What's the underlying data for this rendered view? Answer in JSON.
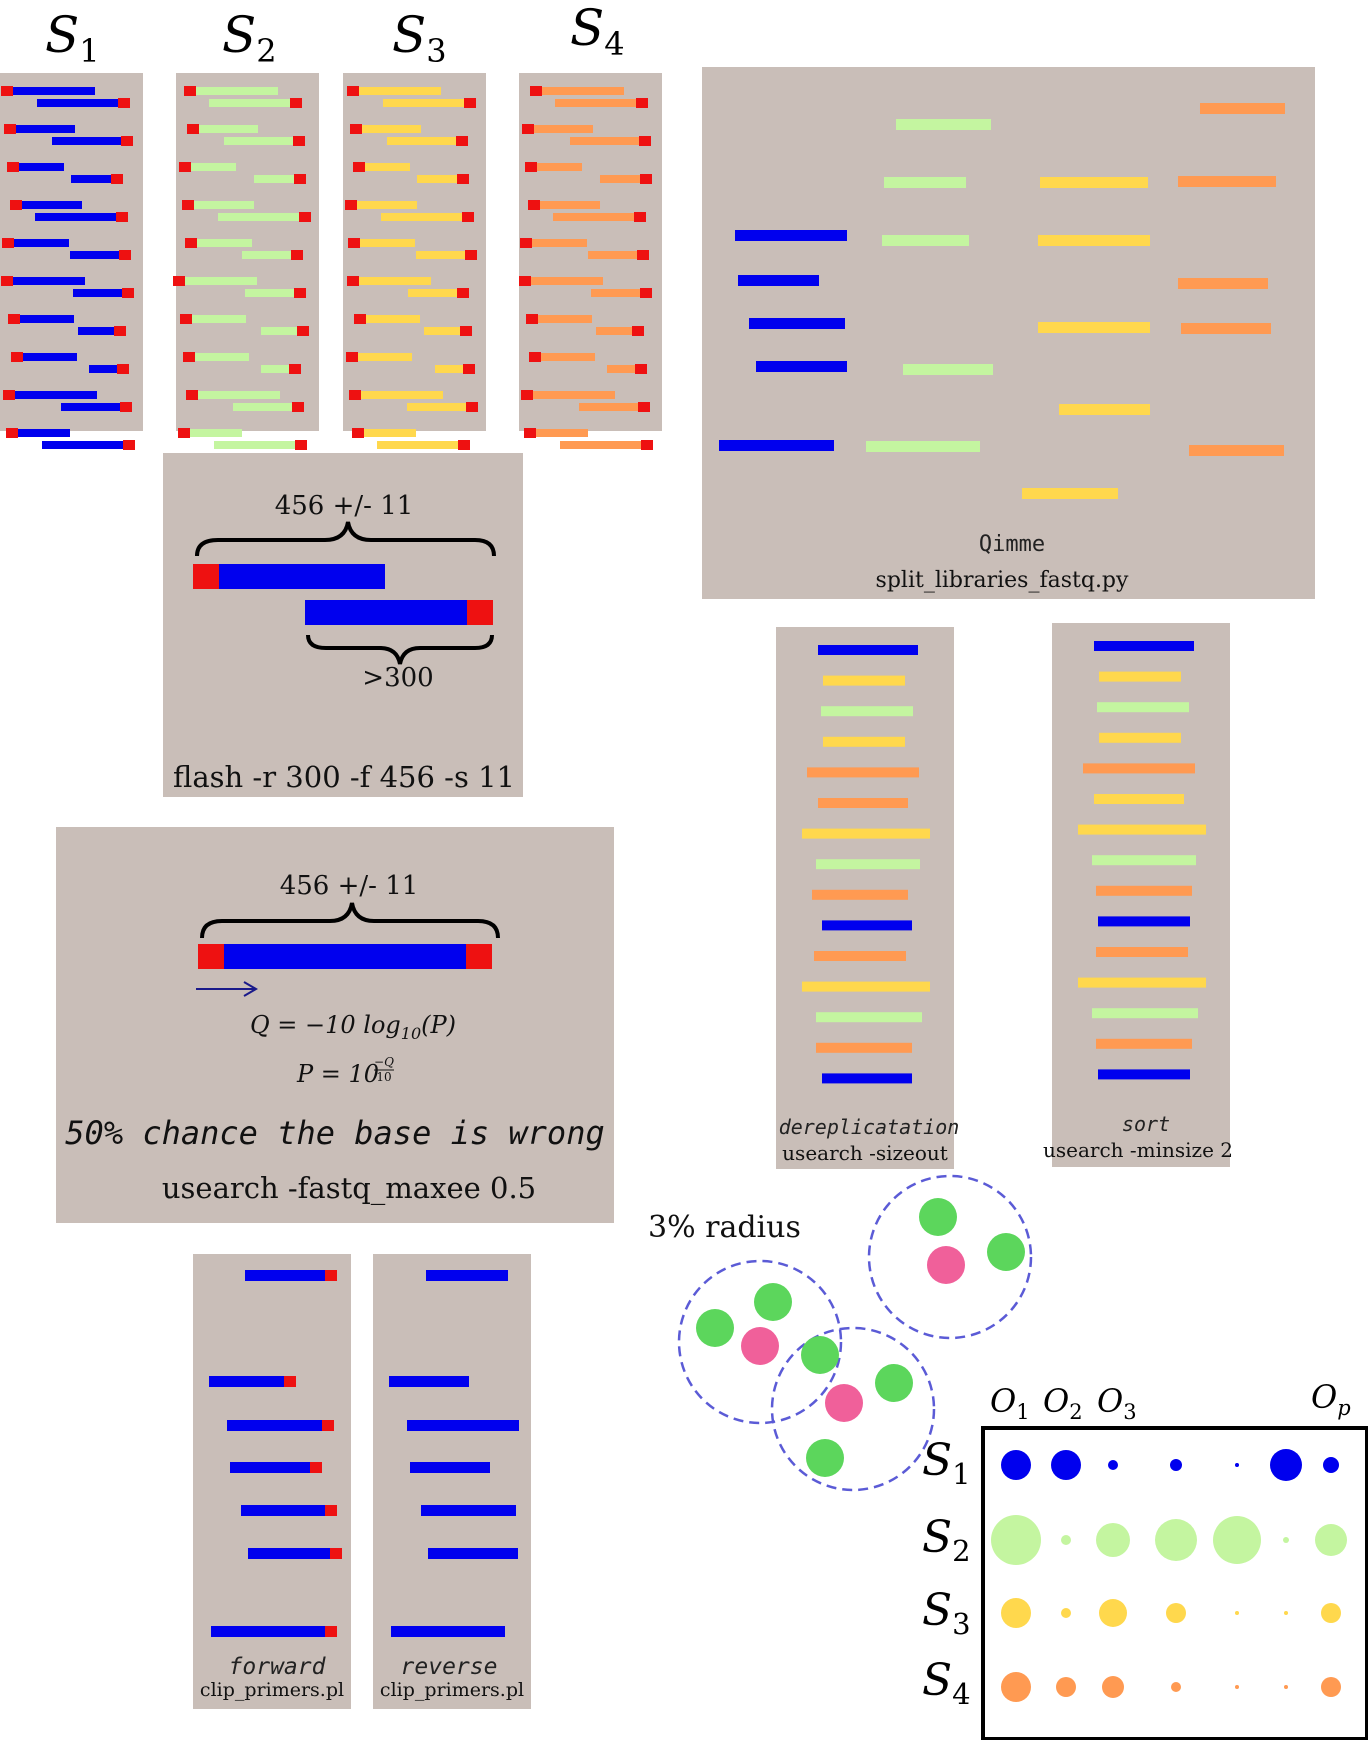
{
  "samples": [
    {
      "label": "S",
      "sub": "1",
      "color": "#0000ee",
      "primer": "#ee1111"
    },
    {
      "label": "S",
      "sub": "2",
      "color": "#c4f5a0",
      "primer": "#ee1111"
    },
    {
      "label": "S",
      "sub": "3",
      "color": "#ffd84d",
      "primer": "#ee1111"
    },
    {
      "label": "S",
      "sub": "4",
      "color": "#ff9a52",
      "primer": "#ee1111"
    }
  ],
  "panel_bg": "#c9beb8",
  "qiime": {
    "title": "Qimme",
    "command": "split_libraries_fastq.py"
  },
  "flash": {
    "length_label": "456 +/- 11",
    "overlap_label": ">300",
    "command": "flash -r 300 -f 456 -s 11"
  },
  "quality": {
    "length_label": "456 +/- 11",
    "formula_q": "Q = −10 log",
    "formula_q_sub": "10",
    "formula_q_tail": "(P)",
    "formula_p": "P = 10",
    "formula_p_exp_num": "−Q",
    "formula_p_exp_den": "10",
    "note": "50% chance the base is wrong",
    "command": "usearch -fastq_maxee 0.5"
  },
  "dereplication": {
    "title": "dereplicatation",
    "command": "usearch -sizeout"
  },
  "sort": {
    "title": "sort",
    "command": "usearch -minsize 2"
  },
  "clip_forward": {
    "title": "forward",
    "command": "clip_primers.pl"
  },
  "clip_reverse": {
    "title": "reverse",
    "command": "clip_primers.pl"
  },
  "clustering": {
    "radius_label": "3% radius",
    "centroid_color": "#f0609a",
    "member_color": "#5cd65c",
    "ring_color": "#5b5bd6"
  },
  "otu_table": {
    "columns": [
      {
        "label": "O",
        "sub": "1"
      },
      {
        "label": "O",
        "sub": "2"
      },
      {
        "label": "O",
        "sub": "3"
      },
      {
        "label": "O",
        "sub": "p"
      }
    ],
    "rows": [
      {
        "label": "S",
        "sub": "1"
      },
      {
        "label": "S",
        "sub": "2"
      },
      {
        "label": "S",
        "sub": "3"
      },
      {
        "label": "S",
        "sub": "4"
      }
    ],
    "counts": [
      [
        15,
        15,
        5,
        6,
        2,
        16,
        8
      ],
      [
        25,
        5,
        17,
        21,
        24,
        3,
        16
      ],
      [
        15,
        5,
        14,
        10,
        2,
        2,
        10
      ],
      [
        15,
        10,
        11,
        5,
        2,
        2,
        10
      ]
    ]
  }
}
